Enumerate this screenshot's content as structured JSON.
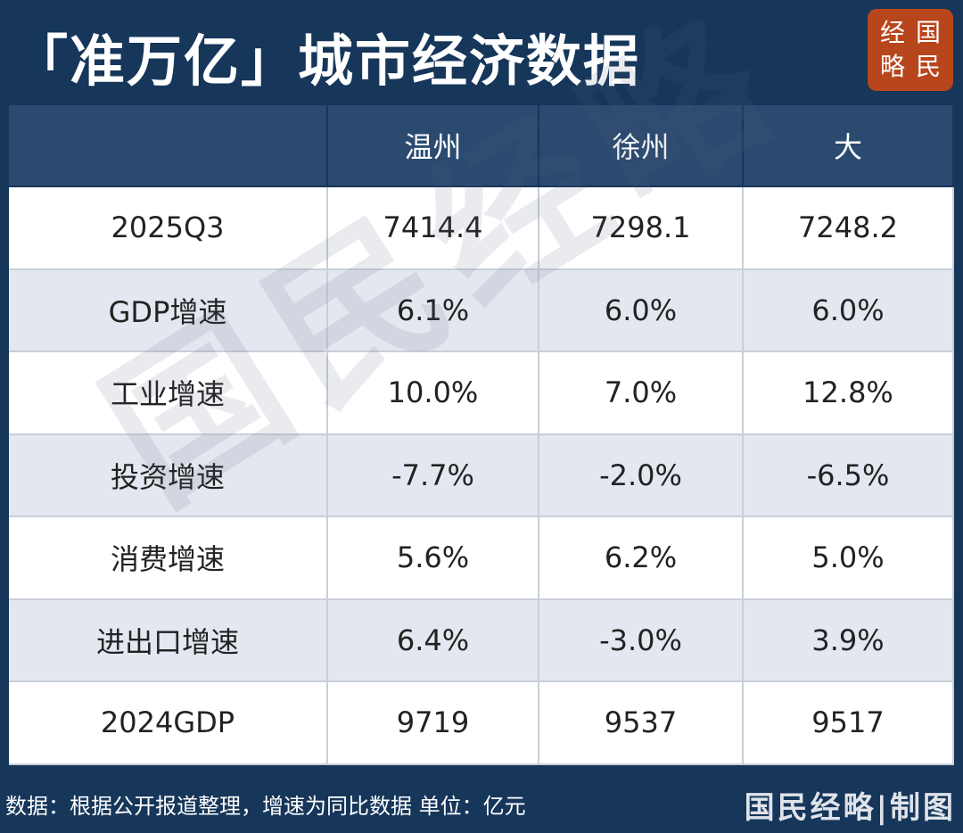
{
  "header": {
    "title": "「准万亿」城市经济数据",
    "logo": [
      "经",
      "国",
      "略",
      "民"
    ]
  },
  "table": {
    "columns": [
      "温州",
      "徐州",
      "大"
    ],
    "rows": [
      [
        "2025Q3",
        "7414.4",
        "7298.1",
        "7248.2"
      ],
      [
        "GDP增速",
        "6.1%",
        "6.0%",
        "6.0%"
      ],
      [
        "工业增速",
        "10.0%",
        "7.0%",
        "12.8%"
      ],
      [
        "投资增速",
        "-7.7%",
        "-2.0%",
        "-6.5%"
      ],
      [
        "消费增速",
        "5.6%",
        "6.2%",
        "5.0%"
      ],
      [
        "进出口增速",
        "6.4%",
        "-3.0%",
        "3.9%"
      ],
      [
        "2024GDP",
        "9719",
        "9537",
        "9517"
      ]
    ]
  },
  "watermark": "国民经略",
  "footer": {
    "note": "数据：根据公开报道整理，增速为同比数据 单位：亿元",
    "credit": "国民经略|制图"
  }
}
